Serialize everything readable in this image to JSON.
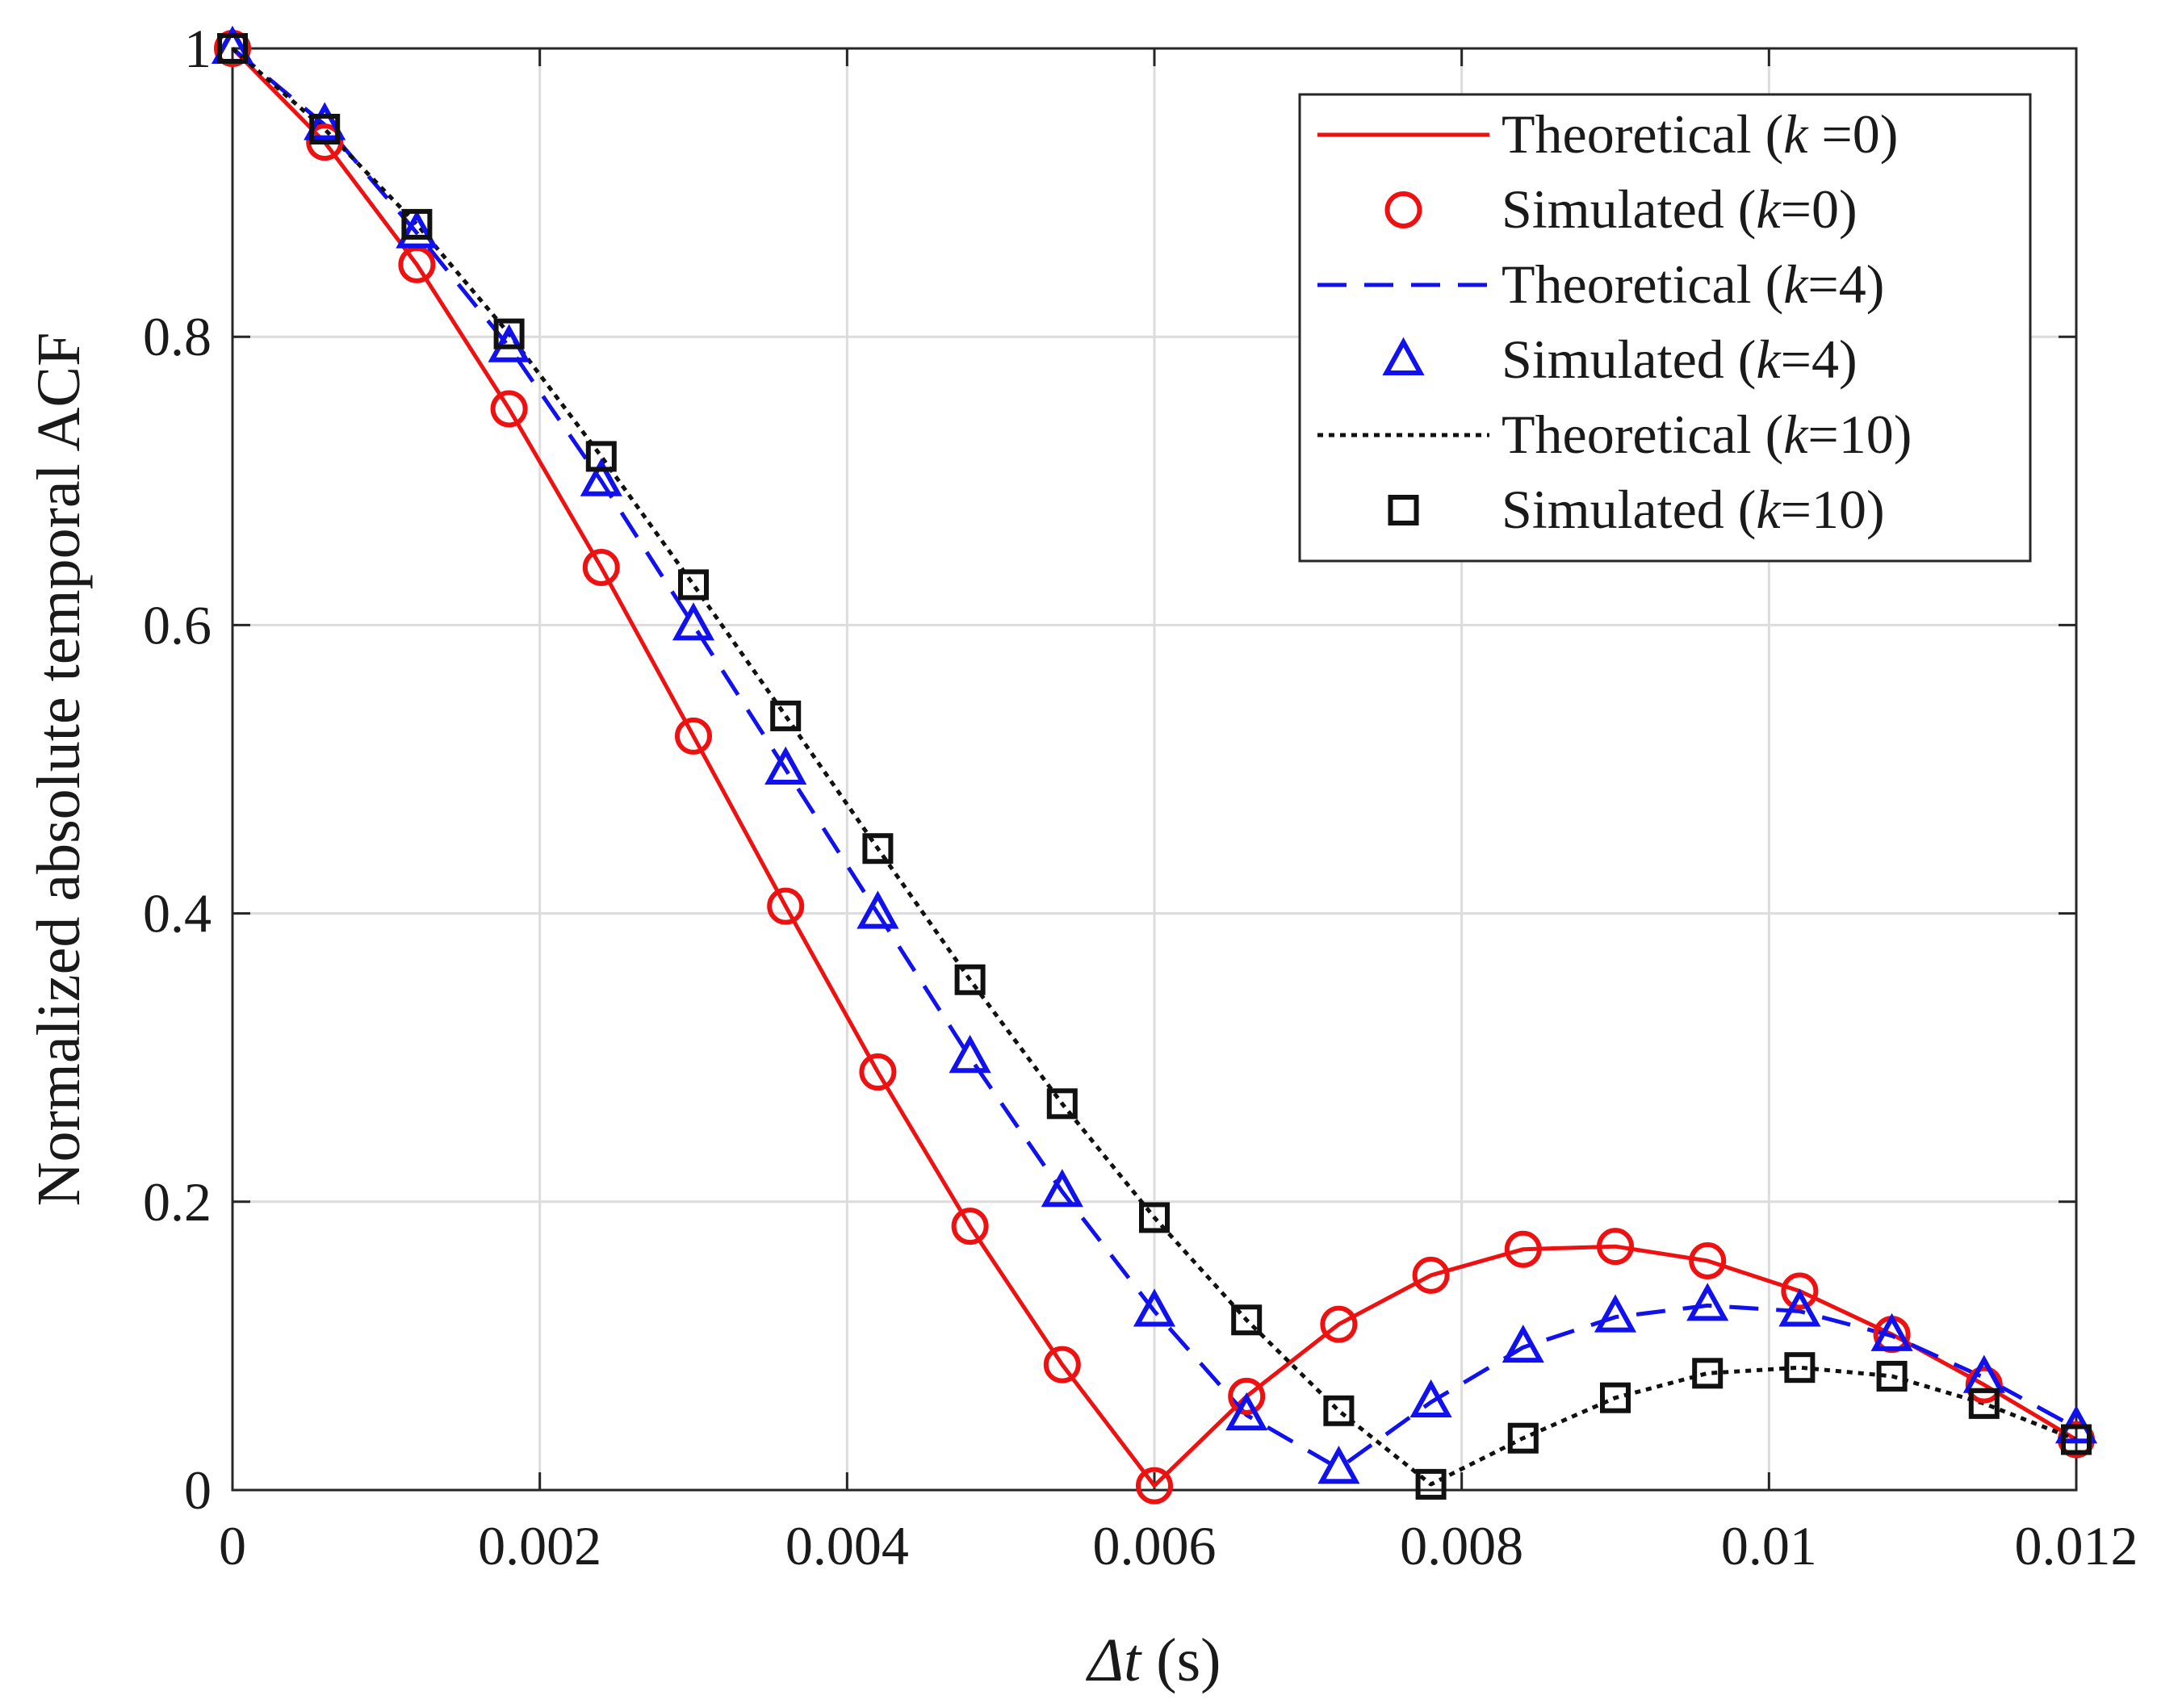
{
  "chart_data": {
    "type": "line",
    "title": "",
    "xlabel": "Δt (s)",
    "ylabel": "Normalized absolute temporal ACF",
    "xlim": [
      0,
      0.012
    ],
    "ylim": [
      0,
      1
    ],
    "grid": true,
    "legend_position": "top-right",
    "x_ticks": [
      0,
      0.002,
      0.004,
      0.006,
      0.008,
      0.01,
      0.012
    ],
    "x_tick_labels": [
      "0",
      "0.002",
      "0.004",
      "0.006",
      "0.008",
      "0.01",
      "0.012"
    ],
    "y_ticks": [
      0,
      0.2,
      0.4,
      0.6,
      0.8,
      1
    ],
    "y_tick_labels": [
      "0",
      "0.2",
      "0.4",
      "0.6",
      "0.8",
      "1"
    ],
    "x": [
      0,
      0.0006,
      0.0012,
      0.0018,
      0.0024,
      0.003,
      0.0036,
      0.0042,
      0.0048,
      0.0054,
      0.006,
      0.0066,
      0.0072,
      0.0078,
      0.0084,
      0.009,
      0.0096,
      0.0102,
      0.0108,
      0.0114,
      0.012
    ],
    "series": [
      {
        "name": "Theoretical (k =0)",
        "style": "solid",
        "color": "#ee1111",
        "values": [
          1.0,
          0.935,
          0.85,
          0.75,
          0.64,
          0.523,
          0.405,
          0.29,
          0.183,
          0.087,
          0.003,
          0.065,
          0.115,
          0.149,
          0.167,
          0.169,
          0.159,
          0.138,
          0.108,
          0.073,
          0.035
        ]
      },
      {
        "name": "Simulated (k=0)",
        "marker": "circle",
        "color": "#ee1111",
        "values": [
          1.0,
          0.935,
          0.85,
          0.75,
          0.64,
          0.523,
          0.405,
          0.29,
          0.183,
          0.087,
          0.003,
          0.065,
          0.115,
          0.149,
          0.167,
          0.169,
          0.159,
          0.138,
          0.108,
          0.073,
          0.035
        ]
      },
      {
        "name": "Theoretical (k=4)",
        "style": "dashed",
        "color": "#1111ee",
        "values": [
          1.0,
          0.947,
          0.872,
          0.793,
          0.7,
          0.6,
          0.5,
          0.4,
          0.3,
          0.207,
          0.124,
          0.052,
          0.015,
          0.061,
          0.099,
          0.12,
          0.128,
          0.124,
          0.107,
          0.078,
          0.043
        ]
      },
      {
        "name": "Simulated (k=4)",
        "marker": "triangle",
        "color": "#1111ee",
        "values": [
          1.0,
          0.947,
          0.872,
          0.793,
          0.7,
          0.6,
          0.5,
          0.4,
          0.3,
          0.207,
          0.124,
          0.052,
          0.015,
          0.061,
          0.099,
          0.12,
          0.128,
          0.124,
          0.107,
          0.078,
          0.043
        ]
      },
      {
        "name": "Theoretical (k=10)",
        "style": "dotted",
        "color": "#111111",
        "values": [
          1.0,
          0.944,
          0.878,
          0.802,
          0.717,
          0.628,
          0.537,
          0.445,
          0.354,
          0.268,
          0.189,
          0.118,
          0.055,
          0.004,
          0.036,
          0.064,
          0.081,
          0.085,
          0.079,
          0.06,
          0.035
        ]
      },
      {
        "name": "Simulated (k=10)",
        "marker": "square",
        "color": "#111111",
        "values": [
          1.0,
          0.944,
          0.878,
          0.802,
          0.717,
          0.628,
          0.537,
          0.445,
          0.354,
          0.268,
          0.189,
          0.118,
          0.055,
          0.004,
          0.036,
          0.064,
          0.081,
          0.085,
          0.079,
          0.06,
          0.035
        ]
      }
    ],
    "legend": [
      {
        "prefix": "Theoretical (",
        "var": "k",
        "suffix": " =0)"
      },
      {
        "prefix": "Simulated (",
        "var": "k",
        "suffix": "=0)"
      },
      {
        "prefix": "Theoretical (",
        "var": "k",
        "suffix": "=4)"
      },
      {
        "prefix": "Simulated (",
        "var": "k",
        "suffix": "=4)"
      },
      {
        "prefix": "Theoretical (",
        "var": "k",
        "suffix": "=10)"
      },
      {
        "prefix": "Simulated (",
        "var": "k",
        "suffix": "=10)"
      }
    ]
  }
}
